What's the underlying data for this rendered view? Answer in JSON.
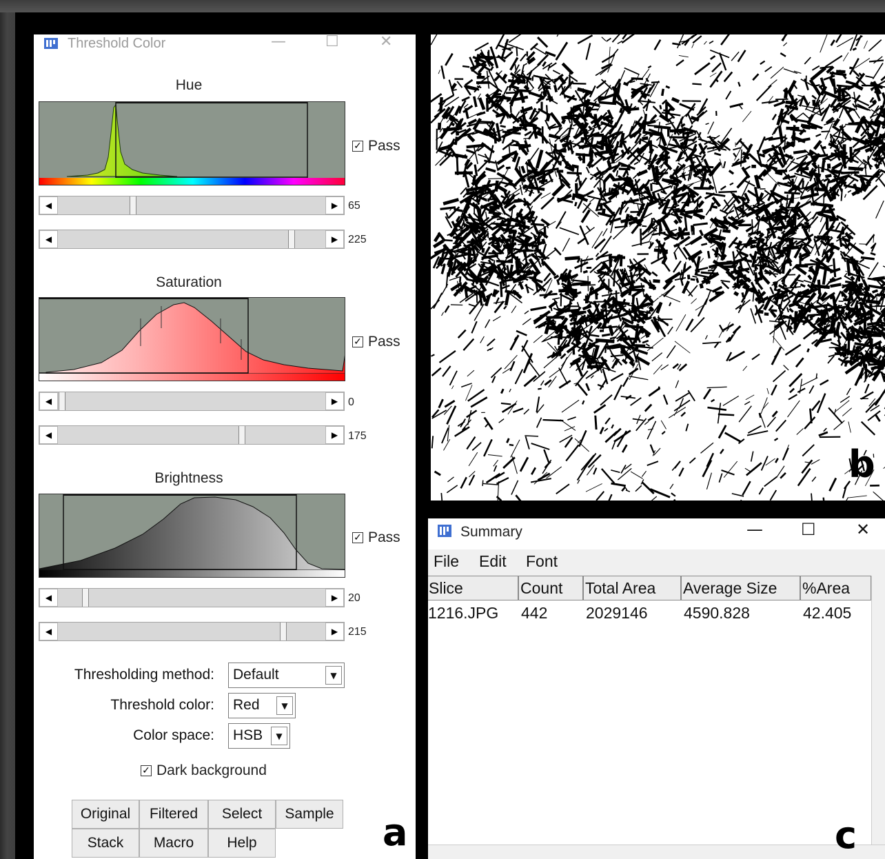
{
  "threshold_window": {
    "title": "Threshold Color",
    "controls": {
      "minimize": "—",
      "maximize": "☐",
      "close": "✕"
    },
    "hue": {
      "title": "Hue",
      "pass_label": "Pass",
      "pass_checked": true,
      "min": "65",
      "max": "225"
    },
    "saturation": {
      "title": "Saturation",
      "pass_label": "Pass",
      "pass_checked": true,
      "min": "0",
      "max": "175"
    },
    "brightness": {
      "title": "Brightness",
      "pass_label": "Pass",
      "pass_checked": true,
      "min": "20",
      "max": "215"
    },
    "method_label": "Thresholding method:",
    "method_value": "Default",
    "color_label": "Threshold color:",
    "color_value": "Red",
    "space_label": "Color space:",
    "space_value": "HSB",
    "dark_bg_label": "Dark background",
    "dark_bg_checked": true,
    "buttons": {
      "original": "Original",
      "filtered": "Filtered",
      "select": "Select",
      "sample": "Sample",
      "stack": "Stack",
      "macro": "Macro",
      "help": "Help"
    },
    "panel_label": "a"
  },
  "binary_image": {
    "panel_label": "b"
  },
  "summary_window": {
    "title": "Summary",
    "controls": {
      "minimize": "—",
      "maximize": "☐",
      "close": "✕"
    },
    "menu": {
      "file": "File",
      "edit": "Edit",
      "font": "Font"
    },
    "columns": [
      "Slice",
      "Count",
      "Total Area",
      "Average Size",
      "%Area"
    ],
    "rows": [
      [
        "1216.JPG",
        "442",
        "2029146",
        "4590.828",
        "42.405"
      ]
    ],
    "panel_label": "c"
  },
  "icons": {
    "checkmark": "✓",
    "left_arrow": "◀",
    "right_arrow": "▶",
    "dropdown_arrow": "▼",
    "app_icon": "imagej-icon"
  }
}
